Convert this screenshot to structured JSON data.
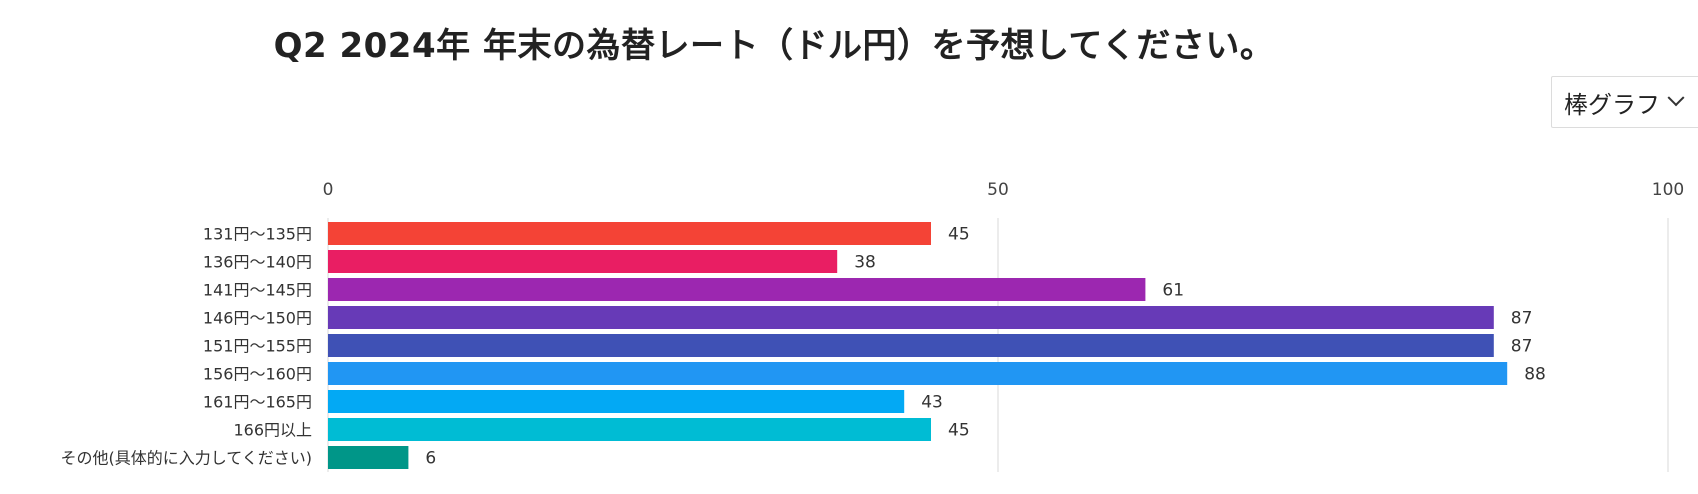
{
  "header": {
    "title": "Q2 2024年 年末の為替レート（ドル円）を予想してください。"
  },
  "controls": {
    "chart_type_selected": "棒グラフ",
    "chevron_icon": "chevron-down-icon"
  },
  "chart_data": {
    "type": "bar",
    "orientation": "horizontal",
    "title": "Q2 2024年 年末の為替レート（ドル円）を予想してください。",
    "categories": [
      "131円～135円",
      "136円～140円",
      "141円～145円",
      "146円～150円",
      "151円～155円",
      "156円～160円",
      "161円～165円",
      "166円以上",
      "その他(具体的に入力してください)"
    ],
    "values": [
      45,
      38,
      61,
      87,
      87,
      88,
      43,
      45,
      6
    ],
    "colors": [
      "#f44336",
      "#e91e63",
      "#9c27b0",
      "#673ab7",
      "#3f51b5",
      "#2196f3",
      "#03a9f4",
      "#00bcd4",
      "#009688"
    ],
    "xlim": [
      0,
      100
    ],
    "x_ticks": [
      0,
      50,
      100
    ],
    "grid": true,
    "data_labels": true,
    "xlabel": "",
    "ylabel": ""
  }
}
